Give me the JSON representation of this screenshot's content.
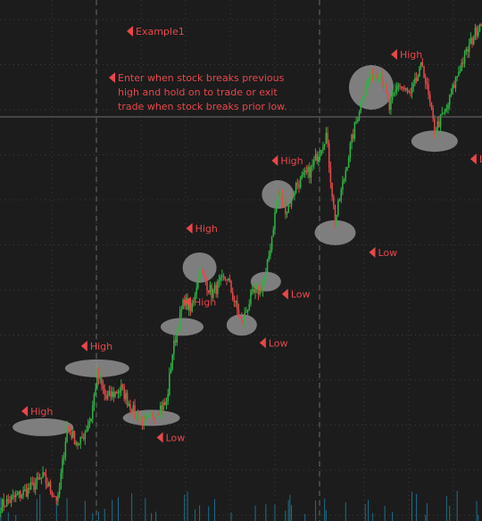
{
  "chart_data": {
    "type": "candlestick",
    "colors": {
      "background": "#1c1c1c",
      "grid": "#3d3d3d",
      "up": "#2fb344",
      "down": "#e8474b",
      "annotation": "#e8474b",
      "highlight": "#9a9a9a",
      "price_line": "#6e6e6e",
      "volume": "#1f6e8c"
    },
    "grid": true,
    "title_note": "Example1",
    "note_lines": [
      "Enter when stock breaks previous",
      "high and hold on to trade or exit",
      "trade when stock breaks prior low."
    ],
    "annotations": [
      {
        "label": "High",
        "bar": 28,
        "price": 78
      },
      {
        "label": "High",
        "bar": 64,
        "price": 111
      },
      {
        "label": "Low",
        "bar": 100,
        "price": 72
      },
      {
        "label": "High",
        "bar": 118,
        "price": 152
      },
      {
        "label": "High",
        "bar": 132,
        "price": 193
      },
      {
        "label": "Low",
        "bar": 160,
        "price": 150
      },
      {
        "label": "Low",
        "bar": 176,
        "price": 189
      },
      {
        "label": "High",
        "bar": 184,
        "price": 254
      },
      {
        "label": "Low",
        "bar": 222,
        "price": 231
      },
      {
        "label": "High",
        "bar": 246,
        "price": 346
      },
      {
        "label": "Low",
        "bar": 288,
        "price": 303
      }
    ]
  }
}
